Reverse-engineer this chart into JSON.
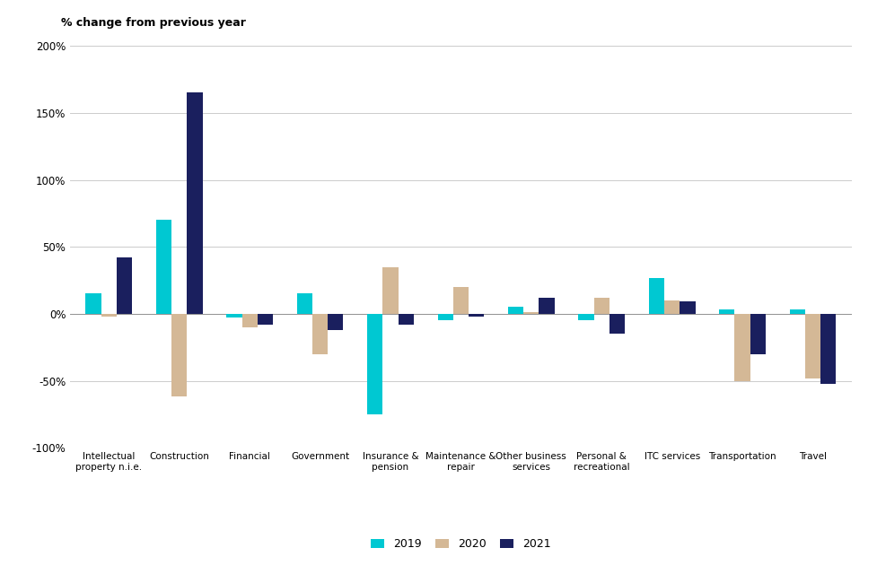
{
  "categories": [
    "Intellectual\nproperty n.i.e.",
    "Construction",
    "Financial",
    "Government",
    "Insurance &\npension",
    "Maintenance &\nrepair",
    "Other business\nservices",
    "Personal &\nrecreational",
    "ITC services",
    "Transportation",
    "Travel"
  ],
  "series": {
    "2019": [
      15,
      70,
      -3,
      15,
      -75,
      -5,
      5,
      -5,
      27,
      3,
      3
    ],
    "2020": [
      -2,
      -62,
      -10,
      -30,
      35,
      20,
      1,
      12,
      10,
      -50,
      -48
    ],
    "2021": [
      42,
      165,
      -8,
      -12,
      -8,
      -2,
      12,
      -15,
      9,
      -30,
      -52
    ]
  },
  "colors": {
    "2019": "#00c8d2",
    "2020": "#d4b896",
    "2021": "#1a1f5e"
  },
  "top_label": "% change from previous year",
  "ylim": [
    -100,
    200
  ],
  "yticks": [
    -100,
    -50,
    0,
    50,
    100,
    150,
    200
  ],
  "ytick_labels": [
    "-100%",
    "-50%",
    "0%",
    "50%",
    "100%",
    "150%",
    "200%"
  ],
  "background_color": "#ffffff",
  "grid_color": "#cccccc",
  "bar_width": 0.22
}
